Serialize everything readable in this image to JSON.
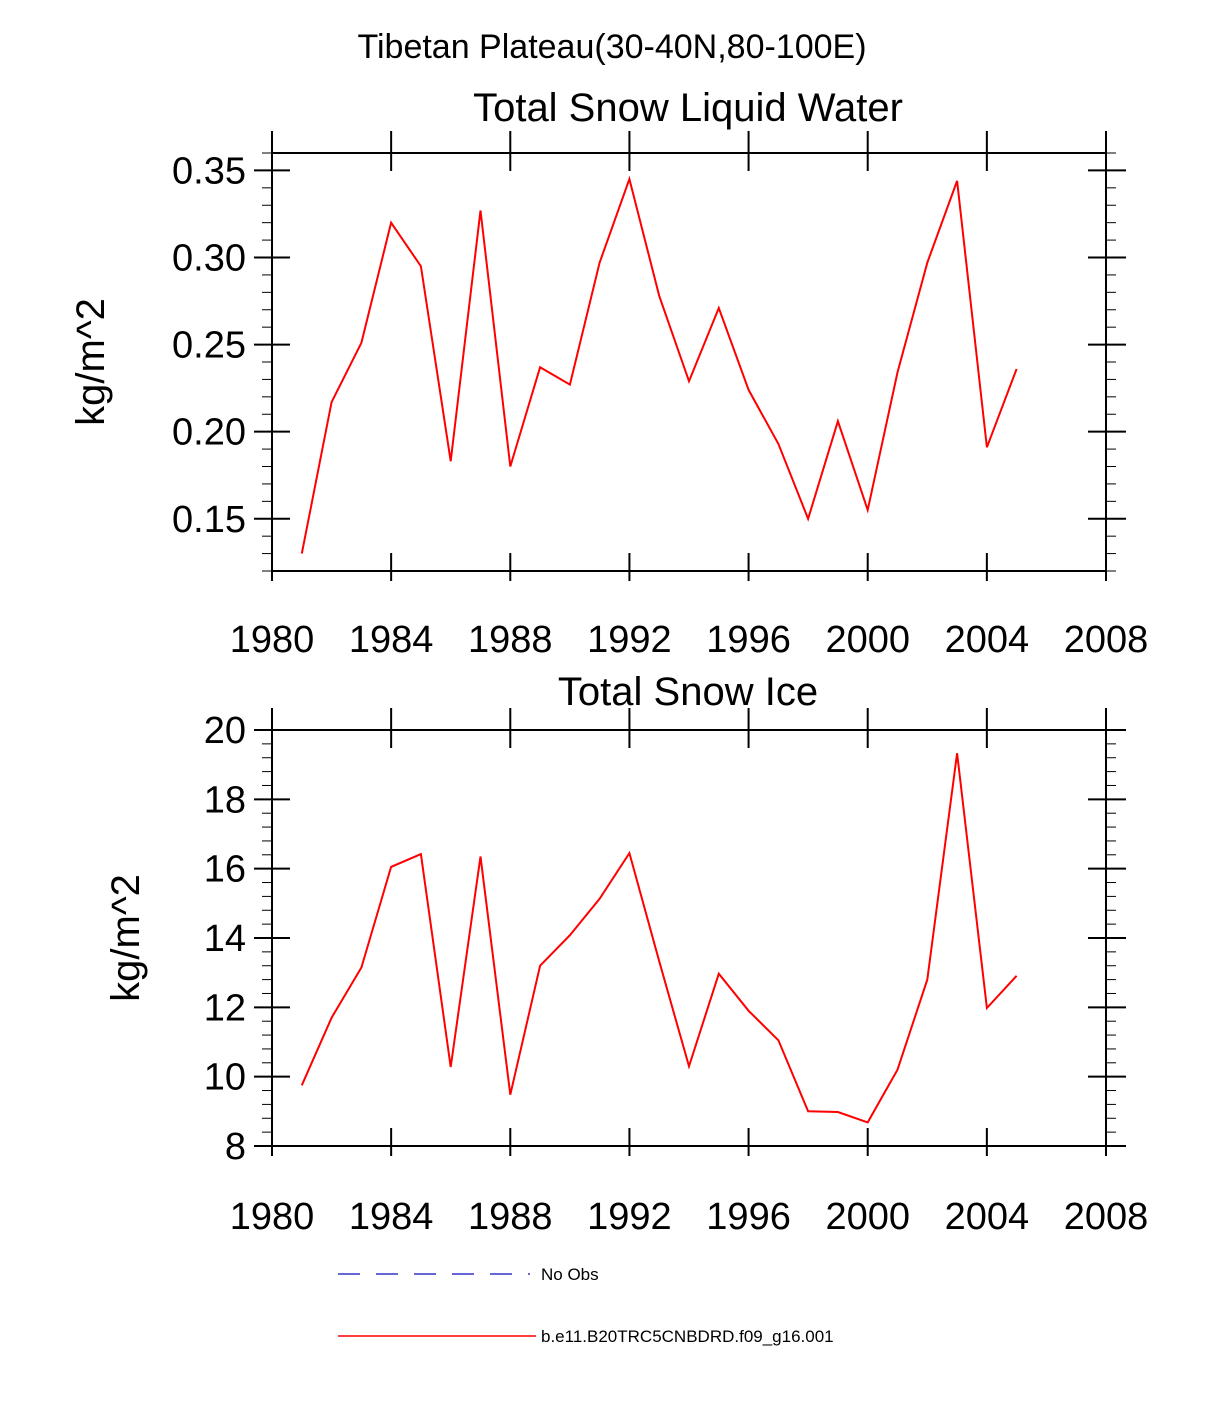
{
  "suptitle": "Tibetan Plateau(30-40N,80-100E)",
  "colors": {
    "model_line": "#ff0000",
    "obs_line": "#3333cc"
  },
  "legend": {
    "items": [
      {
        "label": "No Obs",
        "style": "dashed",
        "color": "#3333cc"
      },
      {
        "label": "b.e11.B20TRC5CNBDRD.f09_g16.001",
        "style": "solid",
        "color": "#ff0000"
      }
    ]
  },
  "chart_data": [
    {
      "type": "line",
      "title": "Total Snow Liquid Water",
      "xlabel": "",
      "ylabel": "kg/m^2",
      "xlim": [
        1980,
        2008
      ],
      "ylim": [
        0.12,
        0.36
      ],
      "x_ticks": [
        1980,
        1984,
        1988,
        1992,
        1996,
        2000,
        2004,
        2008
      ],
      "x_tick_labels": [
        "1980",
        "1984",
        "1988",
        "1992",
        "1996",
        "2000",
        "2004",
        "2008"
      ],
      "y_ticks": [
        0.15,
        0.2,
        0.25,
        0.3,
        0.35
      ],
      "y_tick_labels": [
        "0.15",
        "0.20",
        "0.25",
        "0.30",
        "0.35"
      ],
      "grid": false,
      "x": [
        1981,
        1982,
        1983,
        1984,
        1985,
        1986,
        1987,
        1988,
        1989,
        1990,
        1991,
        1992,
        1993,
        1994,
        1995,
        1996,
        1997,
        1998,
        1999,
        2000,
        2001,
        2002,
        2003,
        2004,
        2005
      ],
      "series": [
        {
          "name": "b.e11.B20TRC5CNBDRD.f09_g16.001",
          "color": "#ff0000",
          "values": [
            0.13,
            0.217,
            0.251,
            0.32,
            0.295,
            0.183,
            0.327,
            0.18,
            0.237,
            0.227,
            0.297,
            0.345,
            0.278,
            0.229,
            0.271,
            0.224,
            0.193,
            0.15,
            0.206,
            0.155,
            0.234,
            0.297,
            0.344,
            0.191,
            0.236
          ]
        }
      ]
    },
    {
      "type": "line",
      "title": "Total Snow Ice",
      "xlabel": "",
      "ylabel": "kg/m^2",
      "xlim": [
        1980,
        2008
      ],
      "ylim": [
        8,
        20
      ],
      "x_ticks": [
        1980,
        1984,
        1988,
        1992,
        1996,
        2000,
        2004,
        2008
      ],
      "x_tick_labels": [
        "1980",
        "1984",
        "1988",
        "1992",
        "1996",
        "2000",
        "2004",
        "2008"
      ],
      "y_ticks": [
        8,
        10,
        12,
        14,
        16,
        18,
        20
      ],
      "y_tick_labels": [
        "8",
        "10",
        "12",
        "14",
        "16",
        "18",
        "20"
      ],
      "grid": false,
      "x": [
        1981,
        1982,
        1983,
        1984,
        1985,
        1986,
        1987,
        1988,
        1989,
        1990,
        1991,
        1992,
        1993,
        1994,
        1995,
        1996,
        1997,
        1998,
        1999,
        2000,
        2001,
        2002,
        2003,
        2004,
        2005
      ],
      "series": [
        {
          "name": "b.e11.B20TRC5CNBDRD.f09_g16.001",
          "color": "#ff0000",
          "values": [
            9.75,
            11.7,
            13.15,
            16.05,
            16.42,
            10.28,
            16.35,
            9.48,
            13.2,
            14.08,
            15.13,
            16.45,
            13.33,
            10.3,
            12.97,
            11.9,
            11.05,
            9.0,
            8.98,
            8.68,
            10.2,
            12.8,
            19.33,
            11.98,
            12.91
          ]
        }
      ]
    }
  ]
}
